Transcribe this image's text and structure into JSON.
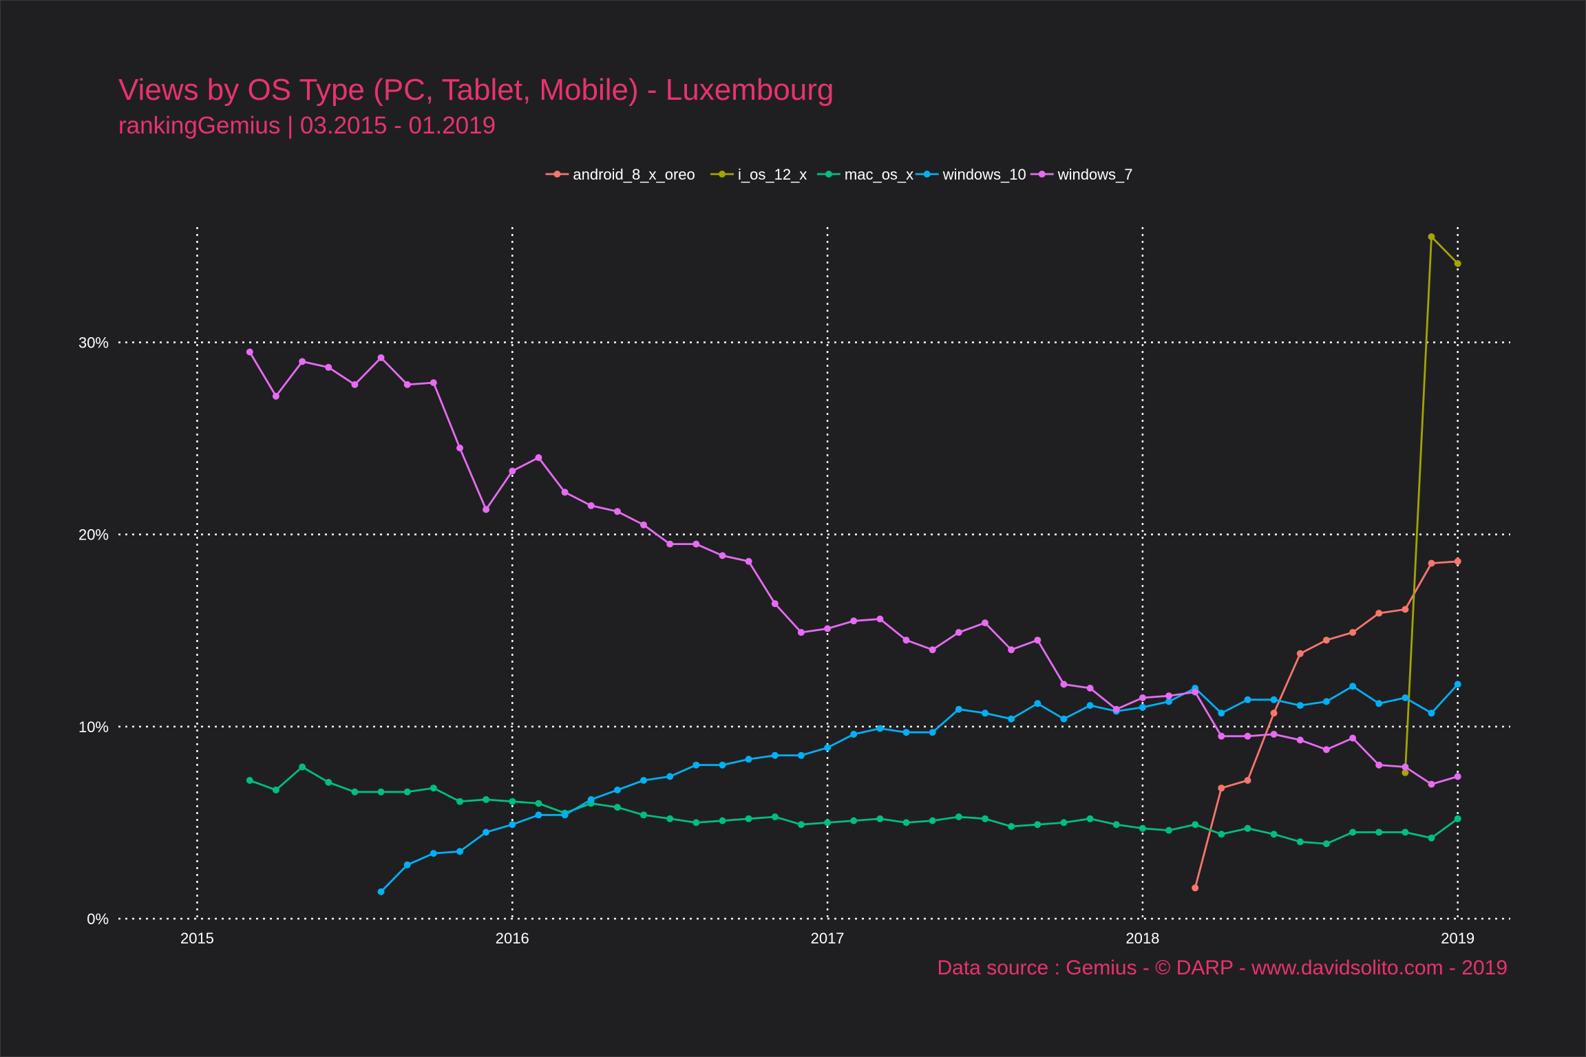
{
  "chart_data": {
    "type": "line",
    "title": "Views by OS Type (PC, Tablet, Mobile) - Luxembourg",
    "subtitle": "rankingGemius | 03.2015 - 01.2019",
    "caption": "Data source : Gemius - © DARP - www.davidsolito.com - 2019",
    "xlabel": "",
    "ylabel": "",
    "x_ticks": [
      "2015",
      "2016",
      "2017",
      "2018",
      "2019"
    ],
    "y_ticks": [
      "0%",
      "10%",
      "20%",
      "30%"
    ],
    "xlim": [
      "2014-10",
      "2019-03"
    ],
    "ylim": [
      0,
      36
    ],
    "grid": true,
    "legend_position": "top",
    "series": [
      {
        "name": "android_8_x_oreo",
        "color": "#f8766d",
        "points": [
          [
            "2018-03",
            1.6
          ],
          [
            "2018-04",
            6.8
          ],
          [
            "2018-05",
            7.2
          ],
          [
            "2018-06",
            10.7
          ],
          [
            "2018-07",
            13.8
          ],
          [
            "2018-08",
            14.5
          ],
          [
            "2018-09",
            14.9
          ],
          [
            "2018-10",
            15.9
          ],
          [
            "2018-11",
            16.1
          ],
          [
            "2018-12",
            18.5
          ],
          [
            "2019-01",
            18.6
          ]
        ]
      },
      {
        "name": "i_os_12_x",
        "color": "#a3a500",
        "points": [
          [
            "2018-11",
            7.6
          ],
          [
            "2018-12",
            35.5
          ],
          [
            "2019-01",
            34.1
          ]
        ]
      },
      {
        "name": "mac_os_x",
        "color": "#00bf7d",
        "points": [
          [
            "2015-03",
            7.2
          ],
          [
            "2015-04",
            6.7
          ],
          [
            "2015-05",
            7.9
          ],
          [
            "2015-06",
            7.1
          ],
          [
            "2015-07",
            6.6
          ],
          [
            "2015-08",
            6.6
          ],
          [
            "2015-09",
            6.6
          ],
          [
            "2015-10",
            6.8
          ],
          [
            "2015-11",
            6.1
          ],
          [
            "2015-12",
            6.2
          ],
          [
            "2016-01",
            6.1
          ],
          [
            "2016-02",
            6.0
          ],
          [
            "2016-03",
            5.5
          ],
          [
            "2016-04",
            6.0
          ],
          [
            "2016-05",
            5.8
          ],
          [
            "2016-06",
            5.4
          ],
          [
            "2016-07",
            5.2
          ],
          [
            "2016-08",
            5.0
          ],
          [
            "2016-09",
            5.1
          ],
          [
            "2016-10",
            5.2
          ],
          [
            "2016-11",
            5.3
          ],
          [
            "2016-12",
            4.9
          ],
          [
            "2017-01",
            5.0
          ],
          [
            "2017-02",
            5.1
          ],
          [
            "2017-03",
            5.2
          ],
          [
            "2017-04",
            5.0
          ],
          [
            "2017-05",
            5.1
          ],
          [
            "2017-06",
            5.3
          ],
          [
            "2017-07",
            5.2
          ],
          [
            "2017-08",
            4.8
          ],
          [
            "2017-09",
            4.9
          ],
          [
            "2017-10",
            5.0
          ],
          [
            "2017-11",
            5.2
          ],
          [
            "2017-12",
            4.9
          ],
          [
            "2018-01",
            4.7
          ],
          [
            "2018-02",
            4.6
          ],
          [
            "2018-03",
            4.9
          ],
          [
            "2018-04",
            4.4
          ],
          [
            "2018-05",
            4.7
          ],
          [
            "2018-06",
            4.4
          ],
          [
            "2018-07",
            4.0
          ],
          [
            "2018-08",
            3.9
          ],
          [
            "2018-09",
            4.5
          ],
          [
            "2018-10",
            4.5
          ],
          [
            "2018-11",
            4.5
          ],
          [
            "2018-12",
            4.2
          ],
          [
            "2019-01",
            5.2
          ]
        ]
      },
      {
        "name": "windows_10",
        "color": "#00b0f6",
        "points": [
          [
            "2015-08",
            1.4
          ],
          [
            "2015-09",
            2.8
          ],
          [
            "2015-10",
            3.4
          ],
          [
            "2015-11",
            3.5
          ],
          [
            "2015-12",
            4.5
          ],
          [
            "2016-01",
            4.9
          ],
          [
            "2016-02",
            5.4
          ],
          [
            "2016-03",
            5.4
          ],
          [
            "2016-04",
            6.2
          ],
          [
            "2016-05",
            6.7
          ],
          [
            "2016-06",
            7.2
          ],
          [
            "2016-07",
            7.4
          ],
          [
            "2016-08",
            8.0
          ],
          [
            "2016-09",
            8.0
          ],
          [
            "2016-10",
            8.3
          ],
          [
            "2016-11",
            8.5
          ],
          [
            "2016-12",
            8.5
          ],
          [
            "2017-01",
            8.9
          ],
          [
            "2017-02",
            9.6
          ],
          [
            "2017-03",
            9.9
          ],
          [
            "2017-04",
            9.7
          ],
          [
            "2017-05",
            9.7
          ],
          [
            "2017-06",
            10.9
          ],
          [
            "2017-07",
            10.7
          ],
          [
            "2017-08",
            10.4
          ],
          [
            "2017-09",
            11.2
          ],
          [
            "2017-10",
            10.4
          ],
          [
            "2017-11",
            11.1
          ],
          [
            "2017-12",
            10.8
          ],
          [
            "2018-01",
            11.0
          ],
          [
            "2018-02",
            11.3
          ],
          [
            "2018-03",
            12.0
          ],
          [
            "2018-04",
            10.7
          ],
          [
            "2018-05",
            11.4
          ],
          [
            "2018-06",
            11.4
          ],
          [
            "2018-07",
            11.1
          ],
          [
            "2018-08",
            11.3
          ],
          [
            "2018-09",
            12.1
          ],
          [
            "2018-10",
            11.2
          ],
          [
            "2018-11",
            11.5
          ],
          [
            "2018-12",
            10.7
          ],
          [
            "2019-01",
            12.2
          ]
        ]
      },
      {
        "name": "windows_7",
        "color": "#e76bf3",
        "points": [
          [
            "2015-03",
            29.5
          ],
          [
            "2015-04",
            27.2
          ],
          [
            "2015-05",
            29.0
          ],
          [
            "2015-06",
            28.7
          ],
          [
            "2015-07",
            27.8
          ],
          [
            "2015-08",
            29.2
          ],
          [
            "2015-09",
            27.8
          ],
          [
            "2015-10",
            27.9
          ],
          [
            "2015-11",
            24.5
          ],
          [
            "2015-12",
            21.3
          ],
          [
            "2016-01",
            23.3
          ],
          [
            "2016-02",
            24.0
          ],
          [
            "2016-03",
            22.2
          ],
          [
            "2016-04",
            21.5
          ],
          [
            "2016-05",
            21.2
          ],
          [
            "2016-06",
            20.5
          ],
          [
            "2016-07",
            19.5
          ],
          [
            "2016-08",
            19.5
          ],
          [
            "2016-09",
            18.9
          ],
          [
            "2016-10",
            18.6
          ],
          [
            "2016-11",
            16.4
          ],
          [
            "2016-12",
            14.9
          ],
          [
            "2017-01",
            15.1
          ],
          [
            "2017-02",
            15.5
          ],
          [
            "2017-03",
            15.6
          ],
          [
            "2017-04",
            14.5
          ],
          [
            "2017-05",
            14.0
          ],
          [
            "2017-06",
            14.9
          ],
          [
            "2017-07",
            15.4
          ],
          [
            "2017-08",
            14.0
          ],
          [
            "2017-09",
            14.5
          ],
          [
            "2017-10",
            12.2
          ],
          [
            "2017-11",
            12.0
          ],
          [
            "2017-12",
            10.9
          ],
          [
            "2018-01",
            11.5
          ],
          [
            "2018-02",
            11.6
          ],
          [
            "2018-03",
            11.8
          ],
          [
            "2018-04",
            9.5
          ],
          [
            "2018-05",
            9.5
          ],
          [
            "2018-06",
            9.6
          ],
          [
            "2018-07",
            9.3
          ],
          [
            "2018-08",
            8.8
          ],
          [
            "2018-09",
            9.4
          ],
          [
            "2018-10",
            8.0
          ],
          [
            "2018-11",
            7.9
          ],
          [
            "2018-12",
            7.0
          ],
          [
            "2019-01",
            7.4
          ]
        ]
      }
    ]
  },
  "colors": {
    "background": "#1f1f21",
    "title": "#e8336e",
    "grid": "#ffffff",
    "text": "#ffffff"
  }
}
